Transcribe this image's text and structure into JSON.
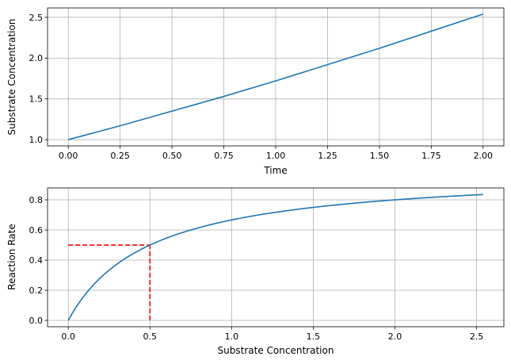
{
  "chart_data": [
    {
      "type": "line",
      "title": "",
      "xlabel": "Time",
      "ylabel": "Substrate Concentration",
      "xlim": [
        -0.1,
        2.1
      ],
      "ylim": [
        0.923,
        2.615
      ],
      "xticks": [
        0.0,
        0.25,
        0.5,
        0.75,
        1.0,
        1.25,
        1.5,
        1.75,
        2.0
      ],
      "xtick_labels": [
        "0.00",
        "0.25",
        "0.50",
        "0.75",
        "1.00",
        "1.25",
        "1.50",
        "1.75",
        "2.00"
      ],
      "yticks": [
        1.0,
        1.5,
        2.0,
        2.5
      ],
      "ytick_labels": [
        "1.0",
        "1.5",
        "2.0",
        "2.5"
      ],
      "grid": true,
      "series": [
        {
          "color": "#1f77b4",
          "x": [
            0.0,
            0.25,
            0.5,
            0.75,
            1.0,
            1.25,
            1.5,
            1.75,
            2.0
          ],
          "y": [
            1.0,
            1.17,
            1.35,
            1.53,
            1.72,
            1.92,
            2.12,
            2.33,
            2.54
          ]
        }
      ]
    },
    {
      "type": "line",
      "title": "",
      "xlabel": "Substrate Concentration",
      "ylabel": "Reaction Rate",
      "xlim": [
        -0.127,
        2.667
      ],
      "ylim": [
        -0.042,
        0.879
      ],
      "xticks": [
        0.0,
        0.5,
        1.0,
        1.5,
        2.0,
        2.5
      ],
      "xtick_labels": [
        "0.0",
        "0.5",
        "1.0",
        "1.5",
        "2.0",
        "2.5"
      ],
      "yticks": [
        0.0,
        0.2,
        0.4,
        0.6,
        0.8
      ],
      "ytick_labels": [
        "0.0",
        "0.2",
        "0.4",
        "0.6",
        "0.8"
      ],
      "grid": true,
      "series": [
        {
          "color": "#1f77b4",
          "function": "Michaelis-Menten",
          "vmax": 1.0,
          "km": 0.5,
          "x_range": [
            0.0,
            2.54
          ]
        }
      ],
      "reference_lines": [
        {
          "color": "#ff0000",
          "style": "dashed",
          "x": [
            0.0,
            0.5
          ],
          "y": [
            0.5,
            0.5
          ]
        },
        {
          "color": "#ff0000",
          "style": "dashed",
          "x": [
            0.5,
            0.5
          ],
          "y": [
            0.0,
            0.5
          ]
        }
      ]
    }
  ]
}
